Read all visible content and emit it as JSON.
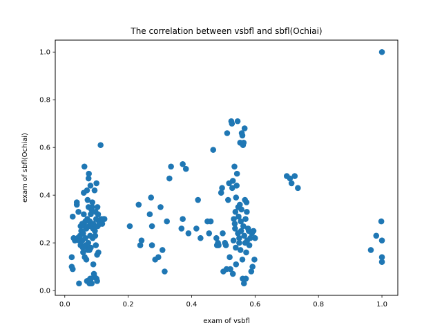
{
  "chart_data": {
    "type": "scatter",
    "title": "The correlation between vsbfl and sbfl(Ochiai)",
    "xlabel": "exam of vsbfl",
    "ylabel": "exam of sbfl(Ochiai)",
    "xlim": [
      -0.03,
      1.05
    ],
    "ylim": [
      -0.02,
      1.05
    ],
    "xticks": [
      0.0,
      0.2,
      0.4,
      0.6,
      0.8,
      1.0
    ],
    "xtick_labels": [
      "0.0",
      "0.2",
      "0.4",
      "0.6",
      "0.8",
      "1.0"
    ],
    "yticks": [
      0.0,
      0.2,
      0.4,
      0.6,
      0.8,
      1.0
    ],
    "ytick_labels": [
      "0.0",
      "0.2",
      "0.4",
      "0.6",
      "0.8",
      "1.0"
    ],
    "grid": false,
    "marker_color": "#1f77b4",
    "points": [
      [
        0.022,
        0.1
      ],
      [
        0.025,
        0.09
      ],
      [
        0.022,
        0.14
      ],
      [
        0.025,
        0.31
      ],
      [
        0.028,
        0.22
      ],
      [
        0.032,
        0.21
      ],
      [
        0.038,
        0.36
      ],
      [
        0.038,
        0.37
      ],
      [
        0.04,
        0.22
      ],
      [
        0.043,
        0.33
      ],
      [
        0.045,
        0.21
      ],
      [
        0.048,
        0.23
      ],
      [
        0.05,
        0.27
      ],
      [
        0.05,
        0.19
      ],
      [
        0.045,
        0.03
      ],
      [
        0.052,
        0.25
      ],
      [
        0.055,
        0.28
      ],
      [
        0.055,
        0.21
      ],
      [
        0.057,
        0.18
      ],
      [
        0.058,
        0.16
      ],
      [
        0.058,
        0.24
      ],
      [
        0.06,
        0.32
      ],
      [
        0.06,
        0.41
      ],
      [
        0.062,
        0.52
      ],
      [
        0.063,
        0.14
      ],
      [
        0.063,
        0.27
      ],
      [
        0.065,
        0.29
      ],
      [
        0.065,
        0.22
      ],
      [
        0.066,
        0.19
      ],
      [
        0.068,
        0.13
      ],
      [
        0.068,
        0.26
      ],
      [
        0.07,
        0.04
      ],
      [
        0.07,
        0.42
      ],
      [
        0.071,
        0.3
      ],
      [
        0.072,
        0.38
      ],
      [
        0.073,
        0.17
      ],
      [
        0.074,
        0.2
      ],
      [
        0.075,
        0.35
      ],
      [
        0.075,
        0.47
      ],
      [
        0.076,
        0.49
      ],
      [
        0.077,
        0.27
      ],
      [
        0.078,
        0.03
      ],
      [
        0.078,
        0.17
      ],
      [
        0.079,
        0.29
      ],
      [
        0.08,
        0.23
      ],
      [
        0.081,
        0.44
      ],
      [
        0.082,
        0.18
      ],
      [
        0.082,
        0.32
      ],
      [
        0.083,
        0.05
      ],
      [
        0.084,
        0.34
      ],
      [
        0.085,
        0.03
      ],
      [
        0.086,
        0.35
      ],
      [
        0.087,
        0.37
      ],
      [
        0.088,
        0.22
      ],
      [
        0.089,
        0.26
      ],
      [
        0.09,
        0.28
      ],
      [
        0.09,
        0.11
      ],
      [
        0.092,
        0.07
      ],
      [
        0.093,
        0.06
      ],
      [
        0.094,
        0.42
      ],
      [
        0.095,
        0.25
      ],
      [
        0.096,
        0.23
      ],
      [
        0.097,
        0.33
      ],
      [
        0.098,
        0.19
      ],
      [
        0.099,
        0.3
      ],
      [
        0.1,
        0.45
      ],
      [
        0.1,
        0.05
      ],
      [
        0.102,
        0.04
      ],
      [
        0.102,
        0.15
      ],
      [
        0.103,
        0.35
      ],
      [
        0.104,
        0.27
      ],
      [
        0.105,
        0.32
      ],
      [
        0.106,
        0.16
      ],
      [
        0.108,
        0.29
      ],
      [
        0.11,
        0.28
      ],
      [
        0.113,
        0.61
      ],
      [
        0.115,
        0.3
      ],
      [
        0.118,
        0.28
      ],
      [
        0.122,
        0.3
      ],
      [
        0.125,
        0.3
      ],
      [
        0.08,
        0.03
      ],
      [
        0.08,
        0.05
      ],
      [
        0.205,
        0.27
      ],
      [
        0.233,
        0.36
      ],
      [
        0.238,
        0.19
      ],
      [
        0.242,
        0.21
      ],
      [
        0.268,
        0.32
      ],
      [
        0.272,
        0.39
      ],
      [
        0.275,
        0.27
      ],
      [
        0.275,
        0.19
      ],
      [
        0.285,
        0.13
      ],
      [
        0.295,
        0.14
      ],
      [
        0.302,
        0.35
      ],
      [
        0.308,
        0.17
      ],
      [
        0.315,
        0.08
      ],
      [
        0.322,
        0.29
      ],
      [
        0.33,
        0.47
      ],
      [
        0.335,
        0.52
      ],
      [
        0.368,
        0.26
      ],
      [
        0.372,
        0.53
      ],
      [
        0.372,
        0.3
      ],
      [
        0.382,
        0.51
      ],
      [
        0.39,
        0.24
      ],
      [
        0.415,
        0.26
      ],
      [
        0.42,
        0.38
      ],
      [
        0.428,
        0.22
      ],
      [
        0.45,
        0.29
      ],
      [
        0.455,
        0.24
      ],
      [
        0.46,
        0.29
      ],
      [
        0.468,
        0.59
      ],
      [
        0.478,
        0.22
      ],
      [
        0.48,
        0.19
      ],
      [
        0.483,
        0.2
      ],
      [
        0.485,
        0.19
      ],
      [
        0.493,
        0.41
      ],
      [
        0.496,
        0.43
      ],
      [
        0.498,
        0.24
      ],
      [
        0.5,
        0.08
      ],
      [
        0.505,
        0.2
      ],
      [
        0.508,
        0.19
      ],
      [
        0.51,
        0.09
      ],
      [
        0.512,
        0.66
      ],
      [
        0.515,
        0.38
      ],
      [
        0.518,
        0.45
      ],
      [
        0.52,
        0.14
      ],
      [
        0.522,
        0.09
      ],
      [
        0.525,
        0.71
      ],
      [
        0.527,
        0.7
      ],
      [
        0.528,
        0.43
      ],
      [
        0.53,
        0.46
      ],
      [
        0.53,
        0.07
      ],
      [
        0.532,
        0.21
      ],
      [
        0.533,
        0.3
      ],
      [
        0.535,
        0.52
      ],
      [
        0.536,
        0.28
      ],
      [
        0.537,
        0.26
      ],
      [
        0.538,
        0.33
      ],
      [
        0.539,
        0.18
      ],
      [
        0.54,
        0.11
      ],
      [
        0.54,
        0.39
      ],
      [
        0.542,
        0.44
      ],
      [
        0.543,
        0.49
      ],
      [
        0.545,
        0.71
      ],
      [
        0.546,
        0.24
      ],
      [
        0.547,
        0.35
      ],
      [
        0.548,
        0.31
      ],
      [
        0.55,
        0.22
      ],
      [
        0.55,
        0.2
      ],
      [
        0.552,
        0.36
      ],
      [
        0.553,
        0.62
      ],
      [
        0.554,
        0.17
      ],
      [
        0.555,
        0.29
      ],
      [
        0.556,
        0.25
      ],
      [
        0.557,
        0.34
      ],
      [
        0.558,
        0.66
      ],
      [
        0.56,
        0.65
      ],
      [
        0.56,
        0.13
      ],
      [
        0.561,
        0.05
      ],
      [
        0.562,
        0.61
      ],
      [
        0.563,
        0.27
      ],
      [
        0.564,
        0.62
      ],
      [
        0.565,
        0.03
      ],
      [
        0.566,
        0.23
      ],
      [
        0.567,
        0.68
      ],
      [
        0.568,
        0.38
      ],
      [
        0.569,
        0.2
      ],
      [
        0.57,
        0.3
      ],
      [
        0.571,
        0.05
      ],
      [
        0.572,
        0.16
      ],
      [
        0.573,
        0.37
      ],
      [
        0.574,
        0.33
      ],
      [
        0.575,
        0.21
      ],
      [
        0.578,
        0.26
      ],
      [
        0.58,
        0.25
      ],
      [
        0.582,
        0.19
      ],
      [
        0.585,
        0.22
      ],
      [
        0.588,
        0.08
      ],
      [
        0.59,
        0.24
      ],
      [
        0.592,
        0.1
      ],
      [
        0.595,
        0.25
      ],
      [
        0.598,
        0.13
      ],
      [
        0.6,
        0.22
      ],
      [
        0.7,
        0.48
      ],
      [
        0.71,
        0.47
      ],
      [
        0.715,
        0.45
      ],
      [
        0.725,
        0.48
      ],
      [
        0.735,
        0.43
      ],
      [
        0.965,
        0.17
      ],
      [
        0.982,
        0.23
      ],
      [
        0.998,
        0.29
      ],
      [
        1.0,
        0.21
      ],
      [
        1.0,
        0.14
      ],
      [
        1.0,
        0.12
      ],
      [
        1.0,
        1.0
      ]
    ]
  }
}
